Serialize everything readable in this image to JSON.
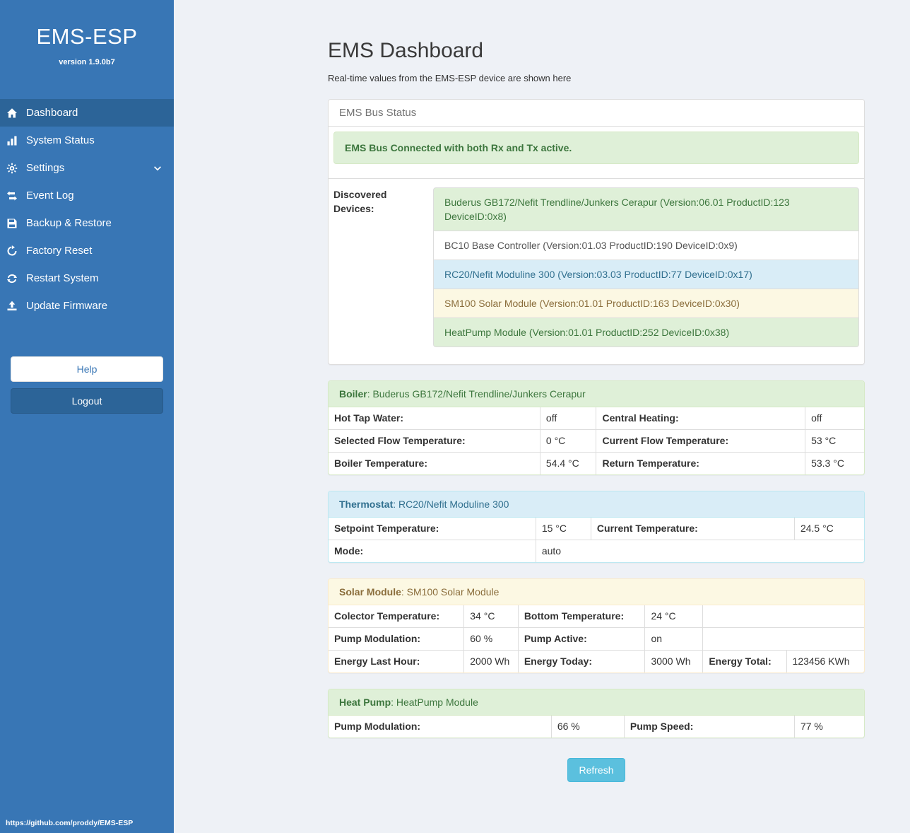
{
  "sidebar": {
    "title": "EMS-ESP",
    "version": "version 1.9.0b7",
    "items": [
      {
        "label": "Dashboard",
        "icon": "home-icon",
        "active": true
      },
      {
        "label": "System Status",
        "icon": "bar-chart-icon",
        "active": false
      },
      {
        "label": "Settings",
        "icon": "gear-icon",
        "active": false,
        "has_chevron": true
      },
      {
        "label": "Event Log",
        "icon": "exchange-arrows-icon",
        "active": false
      },
      {
        "label": "Backup & Restore",
        "icon": "floppy-save-icon",
        "active": false
      },
      {
        "label": "Factory Reset",
        "icon": "rotate-arrow-icon",
        "active": false
      },
      {
        "label": "Restart System",
        "icon": "sync-arrows-icon",
        "active": false
      },
      {
        "label": "Update Firmware",
        "icon": "upload-icon",
        "active": false
      }
    ],
    "help_label": "Help",
    "logout_label": "Logout",
    "footer_link": "https://github.com/proddy/EMS-ESP"
  },
  "main": {
    "title": "EMS Dashboard",
    "subtitle": "Real-time values from the EMS-ESP device are shown here",
    "bus": {
      "heading": "EMS Bus Status",
      "alert": "EMS Bus Connected with both Rx and Tx active.",
      "devices_label": "Discovered Devices:",
      "devices": [
        {
          "type": "success",
          "text": "Buderus GB172/Nefit Trendline/Junkers Cerapur (Version:06.01 ProductID:123 DeviceID:0x8)"
        },
        {
          "type": "default",
          "text": "BC10 Base Controller (Version:01.03 ProductID:190 DeviceID:0x9)"
        },
        {
          "type": "info",
          "text": "RC20/Nefit Moduline 300 (Version:03.03 ProductID:77 DeviceID:0x17)"
        },
        {
          "type": "warning",
          "text": "SM100 Solar Module (Version:01.01 ProductID:163 DeviceID:0x30)"
        },
        {
          "type": "success",
          "text": "HeatPump Module (Version:01.01 ProductID:252 DeviceID:0x38)"
        }
      ]
    },
    "boiler": {
      "name": "Boiler",
      "device": ": Buderus GB172/Nefit Trendline/Junkers Cerapur",
      "rows": [
        [
          {
            "t": "Hot Tap Water:",
            "b": true
          },
          {
            "t": "off"
          },
          {
            "t": "Central Heating:",
            "b": true
          },
          {
            "t": "off"
          }
        ],
        [
          {
            "t": "Selected Flow Temperature:",
            "b": true
          },
          {
            "t": "0 °C"
          },
          {
            "t": "Current Flow Temperature:",
            "b": true
          },
          {
            "t": "53 °C"
          }
        ],
        [
          {
            "t": "Boiler Temperature:",
            "b": true
          },
          {
            "t": "54.4 °C"
          },
          {
            "t": "Return Temperature:",
            "b": true
          },
          {
            "t": "53.3 °C"
          }
        ]
      ]
    },
    "thermostat": {
      "name": "Thermostat",
      "device": ": RC20/Nefit Moduline 300",
      "rows": [
        [
          {
            "t": "Setpoint Temperature:",
            "b": true
          },
          {
            "t": "15 °C"
          },
          {
            "t": "Current Temperature:",
            "b": true
          },
          {
            "t": "24.5 °C"
          }
        ],
        [
          {
            "t": "Mode:",
            "b": true
          },
          {
            "t": "auto",
            "span": 3
          }
        ]
      ]
    },
    "solar": {
      "name": "Solar Module",
      "device": ": SM100 Solar Module",
      "rows": [
        [
          {
            "t": "Colector Temperature:",
            "b": true
          },
          {
            "t": "34 °C"
          },
          {
            "t": "Bottom Temperature:",
            "b": true
          },
          {
            "t": "24 °C"
          },
          {
            "t": "",
            "span": 2
          }
        ],
        [
          {
            "t": "Pump Modulation:",
            "b": true
          },
          {
            "t": "60 %"
          },
          {
            "t": "Pump Active:",
            "b": true
          },
          {
            "t": "on"
          },
          {
            "t": "",
            "span": 2
          }
        ],
        [
          {
            "t": "Energy Last Hour:",
            "b": true
          },
          {
            "t": "2000 Wh"
          },
          {
            "t": "Energy Today:",
            "b": true
          },
          {
            "t": "3000 Wh"
          },
          {
            "t": "Energy Total:",
            "b": true
          },
          {
            "t": "123456 KWh"
          }
        ]
      ]
    },
    "heatpump": {
      "name": "Heat Pump",
      "device": ": HeatPump Module",
      "rows": [
        [
          {
            "t": "Pump Modulation:",
            "b": true
          },
          {
            "t": "66 %"
          },
          {
            "t": "Pump Speed:",
            "b": true
          },
          {
            "t": "77 %"
          }
        ]
      ]
    },
    "refresh_label": "Refresh"
  },
  "colors": {
    "sidebar_blue": "#3876b5",
    "sidebar_active_blue": "#2c6498",
    "success_bg": "#dff0d8",
    "success_text": "#3c763d",
    "info_bg": "#d9edf7",
    "info_text": "#31708f",
    "warning_bg": "#fcf8e3",
    "warning_text": "#8a6d3b",
    "refresh_button": "#5bc0de"
  }
}
